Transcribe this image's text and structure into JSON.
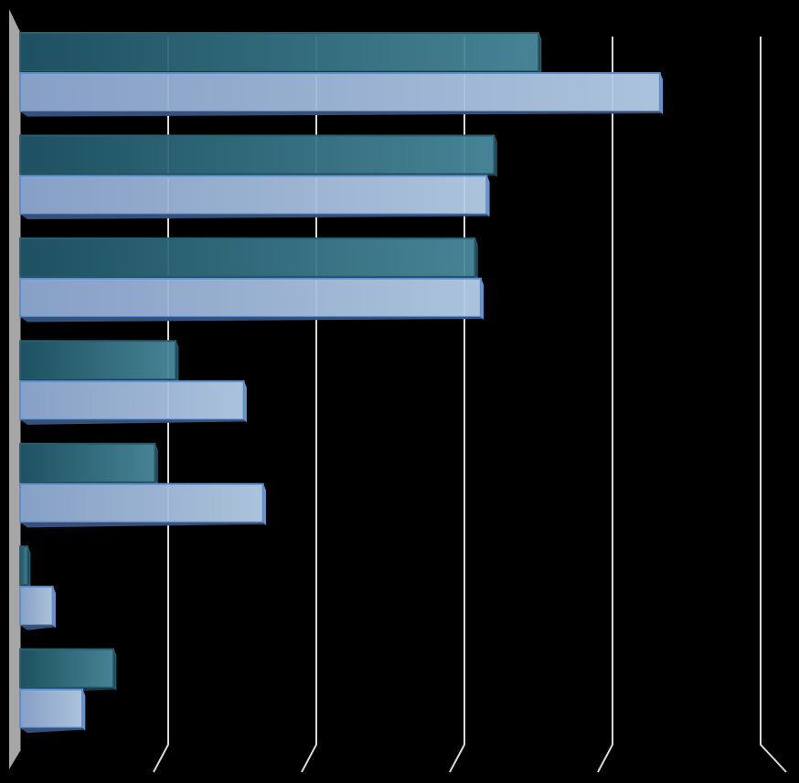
{
  "chart_data": {
    "type": "bar",
    "orientation": "horizontal",
    "categories": [
      null,
      null,
      null,
      null,
      null,
      null,
      null
    ],
    "series": [
      {
        "color": "#2e6b80",
        "values": [
          35.0,
          32.0,
          30.7,
          10.5,
          9.1,
          0.5,
          6.3
        ]
      },
      {
        "color": "#9db7dc",
        "values": [
          43.2,
          31.5,
          31.1,
          15.1,
          16.4,
          2.2,
          4.2
        ]
      }
    ],
    "xlim": [
      0,
      50
    ],
    "xticks": [
      0,
      10,
      20,
      30,
      40,
      50
    ],
    "grid": true
  }
}
